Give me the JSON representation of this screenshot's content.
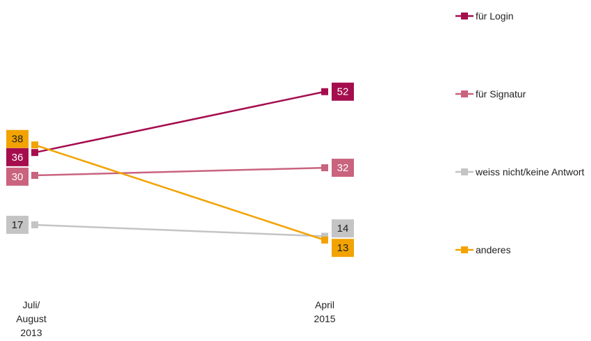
{
  "chart_data": {
    "type": "line",
    "categories": [
      "Juli/\nAugust\n2013",
      "April\n2015"
    ],
    "series": [
      {
        "name": "für Login",
        "color": "#a50d4e",
        "label_color": "#ffffff",
        "values": [
          36,
          52
        ]
      },
      {
        "name": "für Signatur",
        "color": "#c9637e",
        "label_color": "#ffffff",
        "values": [
          30,
          32
        ]
      },
      {
        "name": "weiss nicht/keine Antwort",
        "color": "#c4c4c4",
        "label_color": "#222222",
        "values": [
          17,
          14
        ]
      },
      {
        "name": "anderes",
        "color": "#f2a300",
        "label_color": "#222222",
        "values": [
          38,
          13
        ]
      }
    ],
    "ylim": [
      0,
      75
    ]
  }
}
